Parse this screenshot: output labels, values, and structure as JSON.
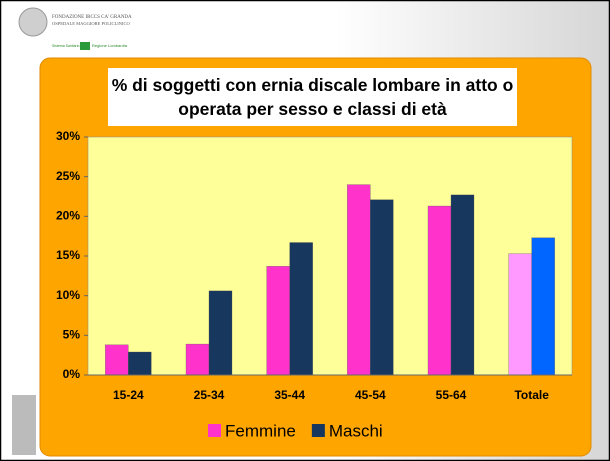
{
  "header": {
    "org_line1": "FONDAZIONE IRCCS CA' GRANDA",
    "org_line2": "OSPEDALE MAGGIORE POLICLINICO",
    "region_left": "Sistema Sanitario",
    "region_right": "Regione Lombardia"
  },
  "chart_data": {
    "type": "bar",
    "title": "% di soggetti con ernia discale lombare in atto o operata per sesso e classi di età",
    "categories": [
      "15-24",
      "25-34",
      "35-44",
      "45-54",
      "55-64",
      "Totale"
    ],
    "series": [
      {
        "name": "Femmine",
        "color": "#ff33cc",
        "colors": [
          "#ff33cc",
          "#ff33cc",
          "#ff33cc",
          "#ff33cc",
          "#ff33cc",
          "#ff99ff"
        ],
        "values": [
          3.8,
          3.9,
          13.7,
          24.0,
          21.3,
          15.3
        ]
      },
      {
        "name": "Maschi",
        "color": "#17375e",
        "colors": [
          "#17375e",
          "#17375e",
          "#17375e",
          "#17375e",
          "#17375e",
          "#0066ff"
        ],
        "values": [
          2.9,
          10.6,
          16.7,
          22.1,
          22.7,
          17.3
        ]
      }
    ],
    "ylim": [
      0,
      30
    ],
    "yticks": [
      {
        "value": 0,
        "label": "0%"
      },
      {
        "value": 5,
        "label": "5%"
      },
      {
        "value": 10,
        "label": "10%"
      },
      {
        "value": 15,
        "label": "15%"
      },
      {
        "value": 20,
        "label": "20%"
      },
      {
        "value": 25,
        "label": "25%"
      },
      {
        "value": 30,
        "label": "30%"
      }
    ],
    "grid": false,
    "legend": "bottom"
  }
}
